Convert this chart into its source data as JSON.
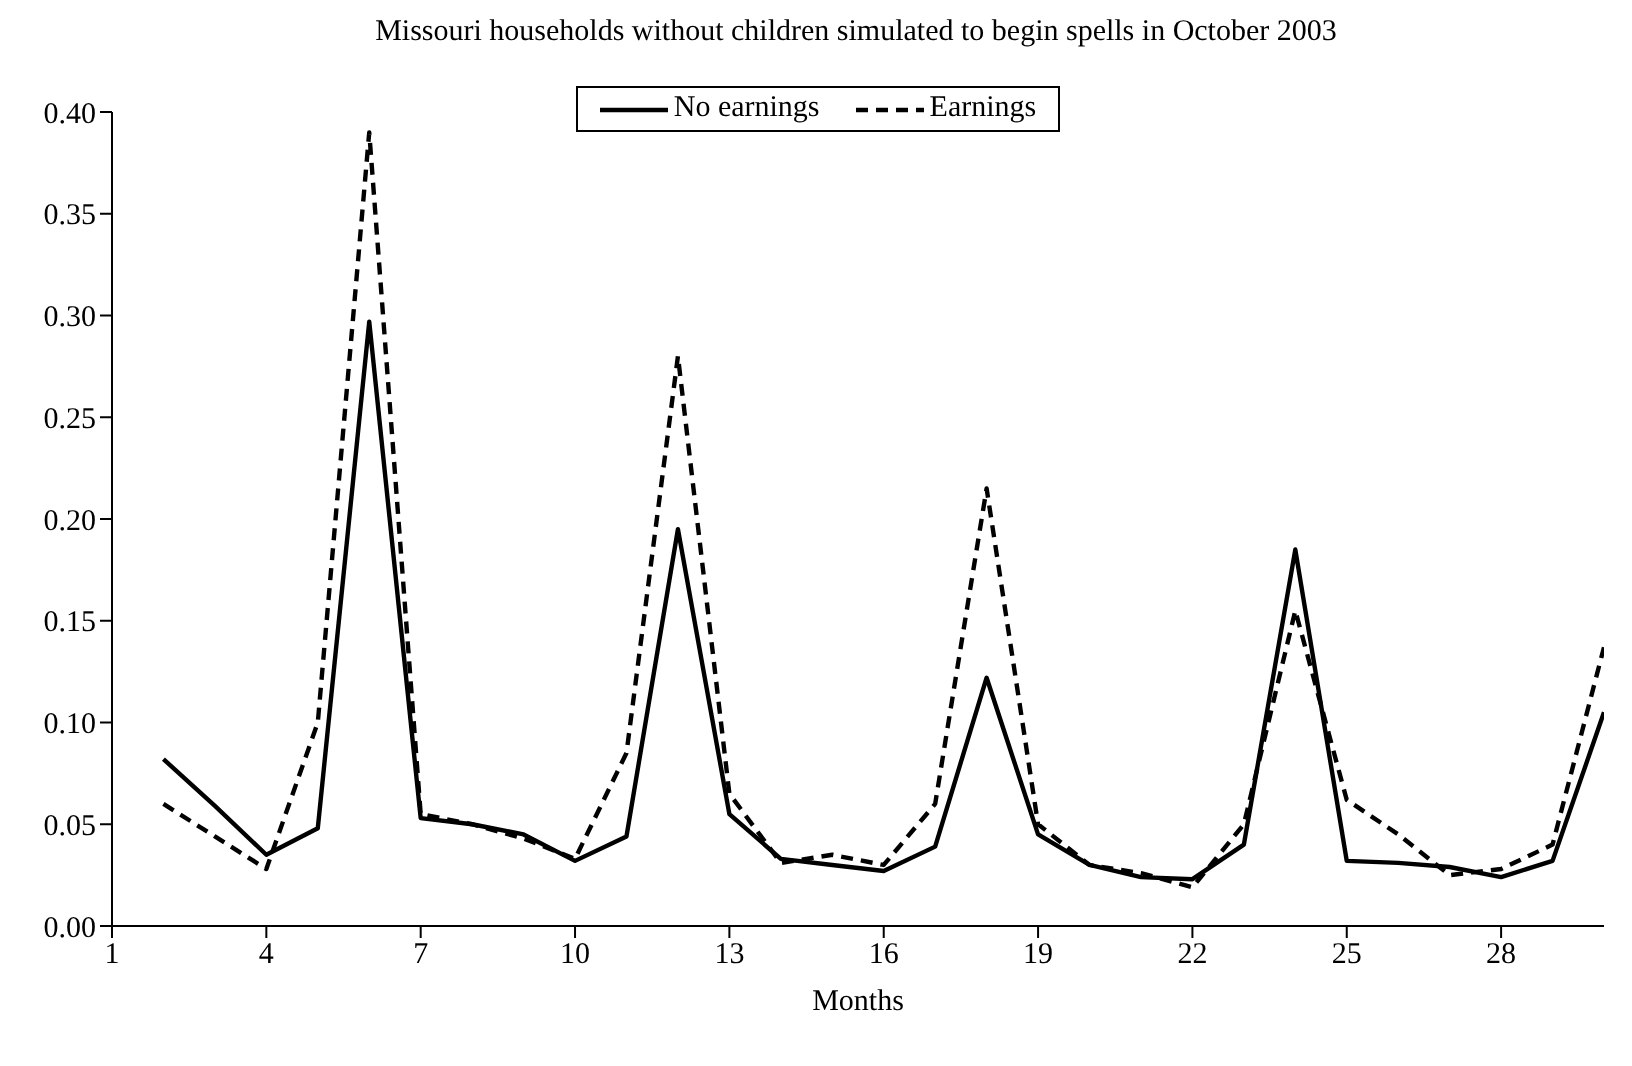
{
  "chart_data": {
    "type": "line",
    "title": "Missouri households without children simulated to begin spells in October 2003",
    "xlabel": "Months",
    "x": [
      2,
      3,
      4,
      5,
      6,
      7,
      8,
      9,
      10,
      11,
      12,
      13,
      14,
      15,
      16,
      17,
      18,
      19,
      20,
      21,
      22,
      23,
      24,
      25,
      26,
      27,
      28,
      29,
      30
    ],
    "series": [
      {
        "name": "No earnings",
        "color": "#000000",
        "line_style": "solid",
        "values": [
          0.082,
          0.059,
          0.035,
          0.048,
          0.297,
          0.053,
          0.05,
          0.045,
          0.032,
          0.044,
          0.195,
          0.055,
          0.033,
          0.03,
          0.027,
          0.039,
          0.122,
          0.045,
          0.03,
          0.024,
          0.023,
          0.04,
          0.185,
          0.032,
          0.031,
          0.029,
          0.024,
          0.032,
          0.105
        ]
      },
      {
        "name": "Earnings",
        "color": "#000000",
        "line_style": "dashed",
        "values": [
          0.06,
          0.044,
          0.028,
          0.1,
          0.39,
          0.055,
          0.05,
          0.043,
          0.033,
          0.085,
          0.28,
          0.065,
          0.031,
          0.035,
          0.03,
          0.06,
          0.215,
          0.05,
          0.03,
          0.026,
          0.019,
          0.05,
          0.155,
          0.062,
          0.045,
          0.025,
          0.028,
          0.04,
          0.137
        ]
      }
    ],
    "xlim": [
      1,
      30
    ],
    "xticks": [
      1,
      4,
      7,
      10,
      13,
      16,
      19,
      22,
      25,
      28
    ],
    "ylim": [
      0,
      0.4
    ],
    "yticks": [
      {
        "value": 0,
        "label": "0.00"
      },
      {
        "value": 0.05,
        "label": "0.05"
      },
      {
        "value": 0.1,
        "label": "0.10"
      },
      {
        "value": 0.15,
        "label": "0.15"
      },
      {
        "value": 0.2,
        "label": "0.20"
      },
      {
        "value": 0.25,
        "label": "0.25"
      },
      {
        "value": 0.3,
        "label": "0.30"
      },
      {
        "value": 0.35,
        "label": "0.35"
      },
      {
        "value": 0.4,
        "label": "0.40"
      }
    ],
    "grid": false,
    "legend": "top",
    "marker": "none"
  }
}
